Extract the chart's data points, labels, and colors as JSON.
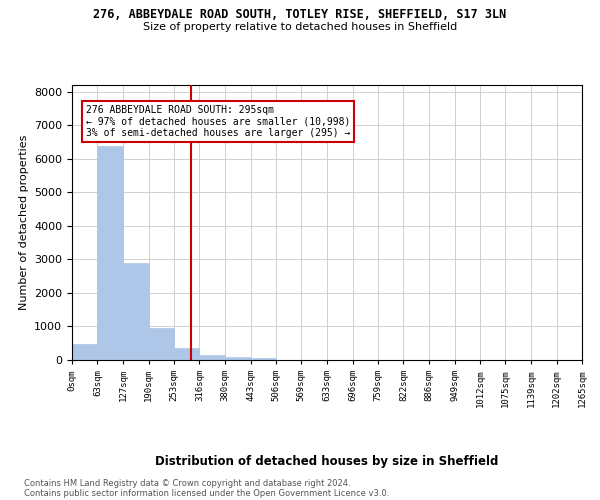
{
  "title1": "276, ABBEYDALE ROAD SOUTH, TOTLEY RISE, SHEFFIELD, S17 3LN",
  "title2": "Size of property relative to detached houses in Sheffield",
  "xlabel": "Distribution of detached houses by size in Sheffield",
  "ylabel": "Number of detached properties",
  "footer1": "Contains HM Land Registry data © Crown copyright and database right 2024.",
  "footer2": "Contains public sector information licensed under the Open Government Licence v3.0.",
  "annotation_line1": "276 ABBEYDALE ROAD SOUTH: 295sqm",
  "annotation_line2": "← 97% of detached houses are smaller (10,998)",
  "annotation_line3": "3% of semi-detached houses are larger (295) →",
  "property_size": 295,
  "bar_edges": [
    0,
    63,
    127,
    190,
    253,
    316,
    380,
    443,
    506,
    569,
    633,
    696,
    759,
    822,
    886,
    949,
    1012,
    1075,
    1139,
    1202,
    1265
  ],
  "bar_heights": [
    480,
    6380,
    2900,
    950,
    350,
    160,
    100,
    50,
    0,
    0,
    0,
    0,
    0,
    0,
    0,
    0,
    0,
    0,
    0,
    0
  ],
  "bar_color": "#aec6e8",
  "bar_edge_color": "#aec6e8",
  "vline_color": "#cc0000",
  "annotation_box_color": "#cc0000",
  "grid_color": "#d0d0d0",
  "ylim": [
    0,
    8200
  ],
  "yticks": [
    0,
    1000,
    2000,
    3000,
    4000,
    5000,
    6000,
    7000,
    8000
  ]
}
